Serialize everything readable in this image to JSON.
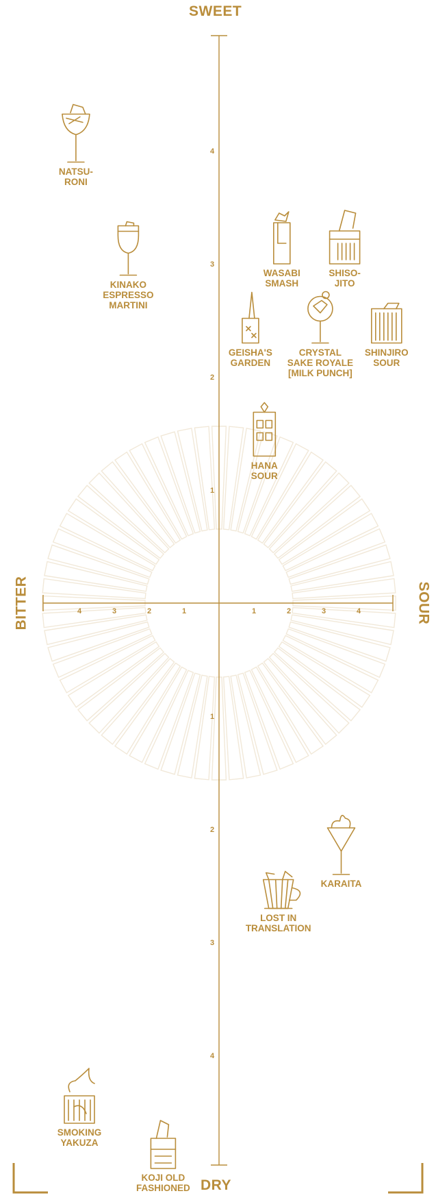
{
  "chart_data": {
    "type": "scatter",
    "axes": {
      "top": "SWEET",
      "bottom": "DRY",
      "left": "BITTER",
      "right": "SOUR"
    },
    "x_ticks_left": [
      "4",
      "3",
      "2",
      "1"
    ],
    "x_ticks_right": [
      "1",
      "2",
      "3",
      "4"
    ],
    "y_ticks_up": [
      "1",
      "2",
      "3",
      "4"
    ],
    "y_ticks_down": [
      "1",
      "2",
      "3",
      "4"
    ],
    "x_range": [
      -5,
      5
    ],
    "y_range": [
      -5,
      5
    ],
    "points": [
      {
        "name": "NATSU-\nRONI",
        "icon": "coupe-glass-icon",
        "x": -4.1,
        "y": 3.9
      },
      {
        "name": "KINAKO\nESPRESSO\nMARTINI",
        "icon": "wine-glass-icon",
        "x": -2.6,
        "y": 2.9
      },
      {
        "name": "WASABI\nSMASH",
        "icon": "highball-glass-icon",
        "x": 1.8,
        "y": 3.0
      },
      {
        "name": "SHISO-\nJITO",
        "icon": "rocks-glass-icon",
        "x": 3.6,
        "y": 3.0
      },
      {
        "name": "GEISHA'S\nGARDEN",
        "icon": "tumbler-glass-icon",
        "x": 0.9,
        "y": 2.3
      },
      {
        "name": "CRYSTAL\nSAKE ROYALE\n[MILK PUNCH]",
        "icon": "goblet-glass-icon",
        "x": 2.9,
        "y": 2.3
      },
      {
        "name": "SHINJIRO\nSOUR",
        "icon": "fluted-glass-icon",
        "x": 4.8,
        "y": 2.3
      },
      {
        "name": "HANA\nSOUR",
        "icon": "collins-glass-icon",
        "x": 1.3,
        "y": 1.3
      },
      {
        "name": "LOST IN\nTRANSLATION",
        "icon": "mug-icon",
        "x": 1.7,
        "y": -2.7
      },
      {
        "name": "KARAITA",
        "icon": "martini-glass-icon",
        "x": 3.5,
        "y": -2.4
      },
      {
        "name": "SMOKING\nYAKUZA",
        "icon": "smoking-glass-icon",
        "x": -4.0,
        "y": -4.6
      },
      {
        "name": "KOJI OLD\nFASHIONED",
        "icon": "old-fashioned-glass-icon",
        "x": -1.6,
        "y": -5.0
      }
    ],
    "colors": {
      "accent": "#b98d3b",
      "sunburst": "#f1e8d8"
    },
    "grid": false
  }
}
